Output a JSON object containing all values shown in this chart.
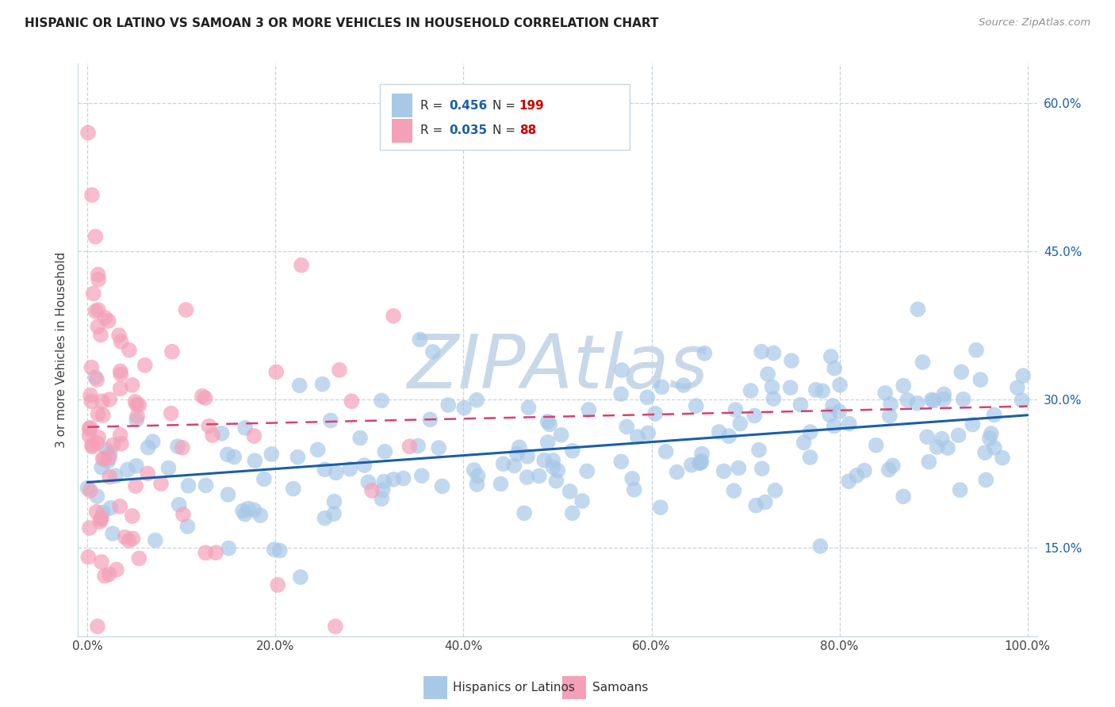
{
  "title": "HISPANIC OR LATINO VS SAMOAN 3 OR MORE VEHICLES IN HOUSEHOLD CORRELATION CHART",
  "source": "Source: ZipAtlas.com",
  "ylabel": "3 or more Vehicles in Household",
  "xlabel_ticks": [
    "0.0%",
    "20.0%",
    "40.0%",
    "60.0%",
    "80.0%",
    "100.0%"
  ],
  "ylabel_ticks_right": [
    "15.0%",
    "30.0%",
    "45.0%",
    "60.0%"
  ],
  "xlim": [
    -0.01,
    1.01
  ],
  "ylim": [
    0.06,
    0.64
  ],
  "y_tick_vals": [
    0.15,
    0.3,
    0.45,
    0.6
  ],
  "x_tick_vals": [
    0.0,
    0.2,
    0.4,
    0.6,
    0.8,
    1.0
  ],
  "blue_R": 0.456,
  "blue_N": 199,
  "pink_R": 0.035,
  "pink_N": 88,
  "blue_color": "#a8c8e8",
  "pink_color": "#f4a0b8",
  "blue_line_color": "#1a5ea8",
  "pink_line_color": "#d84070",
  "legend_blue_label": "Hispanics or Latinos",
  "legend_pink_label": "Samoans",
  "watermark": "ZIPAtlas",
  "watermark_color": "#c8d8e8",
  "background_color": "#ffffff",
  "grid_color": "#c8d4dc",
  "title_color": "#202020",
  "source_color": "#909090",
  "axis_label_color": "#404040",
  "tick_label_color_right": "#1a5ea8",
  "legend_R_color": "#1a5ea8",
  "legend_N_color": "#cc0000",
  "blue_line_start_y": 0.216,
  "blue_line_end_y": 0.284,
  "pink_line_start_y": 0.272,
  "pink_line_end_y": 0.293
}
